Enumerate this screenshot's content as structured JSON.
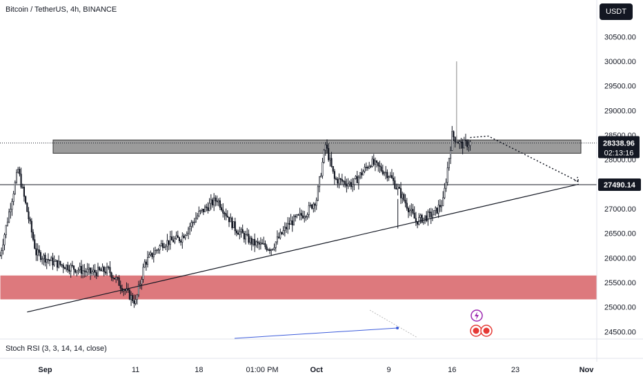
{
  "header": {
    "title": "Bitcoin / TetherUS, 4h, BINANCE"
  },
  "currency_button": {
    "label": "USDT"
  },
  "indicator": {
    "label": "Stoch RSI (3, 3, 14, 14, close)"
  },
  "colors": {
    "up": "#ffffff",
    "down": "#131722",
    "zone_gray": "#8a8a8a",
    "zone_red": "#d96a6f",
    "line": "#131722",
    "rsi_blue": "#3b5bdb",
    "badge_purple": "#9c27b0",
    "badge_red": "#e53935"
  },
  "chart_data": {
    "type": "candlestick",
    "symbol": "Bitcoin / TetherUS",
    "interval": "4h",
    "exchange": "BINANCE",
    "y_ticks": [
      "30500.00",
      "30000.00",
      "29500.00",
      "29000.00",
      "28500.00",
      "28000.00",
      "27000.00",
      "26500.00",
      "26000.00",
      "25500.00",
      "25000.00",
      "24500.00"
    ],
    "x_ticks": [
      "Sep",
      "11",
      "18",
      "01:00 PM",
      "Oct",
      "9",
      "16",
      "23",
      "Nov"
    ],
    "last_price": "28338.96",
    "countdown": "02:13:16",
    "level_price": "27490.14",
    "current_price_value": 28338.96,
    "horizontal_level": 27490.14,
    "ylim": [
      24400,
      30800
    ],
    "x_range": [
      "2023-08-27",
      "2023-11-01"
    ],
    "price_path": [
      [
        "2023-08-27",
        26050
      ],
      [
        "2023-08-29",
        27800
      ],
      [
        "2023-08-31",
        26100
      ],
      [
        "2023-09-02",
        25900
      ],
      [
        "2023-09-04",
        25800
      ],
      [
        "2023-09-06",
        25700
      ],
      [
        "2023-09-08",
        25750
      ],
      [
        "2023-09-10",
        25300
      ],
      [
        "2023-09-11",
        25100
      ],
      [
        "2023-09-12",
        25900
      ],
      [
        "2023-09-14",
        26300
      ],
      [
        "2023-09-16",
        26400
      ],
      [
        "2023-09-18",
        26900
      ],
      [
        "2023-09-20",
        27200
      ],
      [
        "2023-09-22",
        26600
      ],
      [
        "2023-09-24",
        26300
      ],
      [
        "2023-09-26",
        26200
      ],
      [
        "2023-09-28",
        26700
      ],
      [
        "2023-09-30",
        26950
      ],
      [
        "2023-10-01",
        27200
      ],
      [
        "2023-10-02",
        28300
      ],
      [
        "2023-10-03",
        27600
      ],
      [
        "2023-10-05",
        27500
      ],
      [
        "2023-10-07",
        27950
      ],
      [
        "2023-10-09",
        27700
      ],
      [
        "2023-10-10",
        27400
      ],
      [
        "2023-10-12",
        26750
      ],
      [
        "2023-10-14",
        26900
      ],
      [
        "2023-10-15",
        27150
      ],
      [
        "2023-10-16",
        28500
      ],
      [
        "2023-10-17",
        28300
      ],
      [
        "2023-10-18",
        28339
      ]
    ],
    "zones": [
      {
        "from": 28130,
        "to": 28400
      },
      {
        "from": 25150,
        "to": 25650
      }
    ],
    "trendline": [
      [
        "2023-08-30",
        24900
      ],
      [
        "2023-10-30",
        27500
      ]
    ],
    "projection": [
      [
        "2023-10-18",
        28450
      ],
      [
        "2023-10-20",
        28480
      ],
      [
        "2023-10-30",
        27550
      ]
    ]
  }
}
